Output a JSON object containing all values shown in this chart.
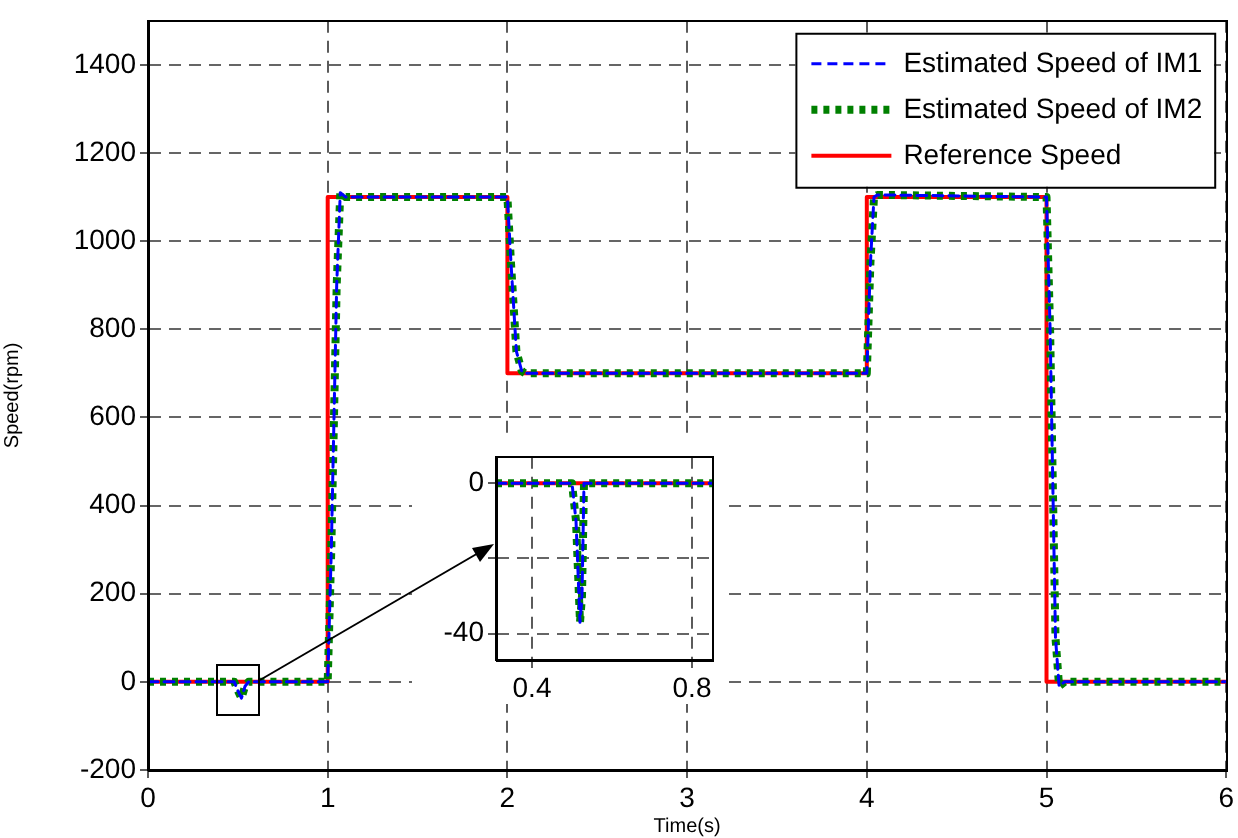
{
  "chart_data": [
    {
      "type": "line",
      "xlabel": "Time(s)",
      "ylabel": "Speed(rpm)",
      "xlim": [
        0,
        6
      ],
      "xticks": [
        0,
        1,
        2,
        3,
        4,
        5,
        6
      ],
      "ylim": [
        -200,
        1500
      ],
      "yticks": [
        -200,
        0,
        200,
        400,
        600,
        800,
        1000,
        1200,
        1400
      ],
      "grid": true,
      "legend": "top right",
      "marker": "none",
      "series": [
        {
          "name": "Estimated Speed of IM1",
          "color": "#0000ff",
          "line_style": "dashed",
          "x": [
            0,
            0.48,
            0.5,
            0.52,
            0.54,
            0.56,
            1.0,
            1.02,
            1.05,
            1.07,
            1.1,
            2.0,
            2.02,
            2.05,
            2.08,
            2.1,
            4.0,
            4.02,
            4.04,
            4.06,
            5.0,
            5.02,
            5.05,
            5.07,
            5.1,
            6
          ],
          "values": [
            0,
            0,
            -20,
            -37,
            -10,
            0,
            0,
            300,
            900,
            1110,
            1100,
            1100,
            950,
            750,
            705,
            700,
            700,
            950,
            1100,
            1105,
            1100,
            800,
            100,
            -10,
            0,
            0
          ]
        },
        {
          "name": "Estimated Speed of IM2",
          "color": "#008000",
          "line_style": "dotted",
          "x": [
            0,
            0.48,
            0.5,
            0.52,
            0.54,
            0.56,
            1.0,
            1.02,
            1.05,
            1.07,
            1.1,
            2.0,
            2.02,
            2.05,
            2.08,
            2.1,
            4.0,
            4.02,
            4.04,
            4.06,
            5.0,
            5.02,
            5.05,
            5.07,
            5.1,
            6
          ],
          "values": [
            0,
            0,
            -20,
            -37,
            -10,
            0,
            0,
            300,
            900,
            1110,
            1100,
            1100,
            950,
            750,
            705,
            700,
            700,
            950,
            1100,
            1105,
            1100,
            800,
            100,
            -10,
            0,
            0
          ]
        },
        {
          "name": "Reference Speed",
          "color": "#ff0000",
          "line_style": "solid",
          "x": [
            0,
            1,
            1,
            2,
            2,
            4,
            4,
            5,
            5,
            6
          ],
          "values": [
            0,
            0,
            1100,
            1100,
            700,
            700,
            1100,
            1100,
            0,
            0
          ]
        }
      ]
    },
    {
      "type": "line",
      "xlim": [
        0.31,
        0.85
      ],
      "xticks": [
        0.4,
        0.8
      ],
      "ylim": [
        -47,
        7
      ],
      "yticks": [
        0,
        {
          "value": -20,
          "label": null
        },
        -40
      ],
      "grid": true,
      "marker": "none",
      "series": [
        {
          "color": "#0000ff",
          "line_style": "dashed",
          "x": [
            0.31,
            0.5,
            0.51,
            0.52,
            0.525,
            0.53,
            0.85
          ],
          "values": [
            0,
            0,
            -10,
            -37,
            -30,
            0,
            0
          ]
        },
        {
          "color": "#008000",
          "line_style": "dotted",
          "x": [
            0.31,
            0.5,
            0.51,
            0.52,
            0.525,
            0.53,
            0.85
          ],
          "values": [
            0,
            0,
            -10,
            -37,
            -30,
            0,
            0
          ]
        },
        {
          "color": "#ff0000",
          "line_style": "solid",
          "x": [
            0.31,
            0.85
          ],
          "values": [
            0,
            0
          ]
        }
      ]
    }
  ]
}
